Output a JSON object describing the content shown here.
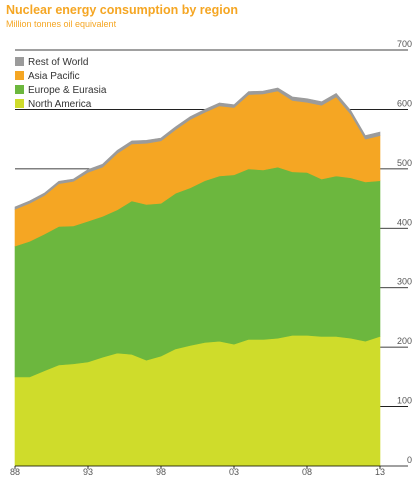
{
  "title": "Nuclear energy consumption by region",
  "subtitle": "Million tonnes oil equivalent",
  "chart_data": {
    "type": "area",
    "stacked": true,
    "x": [
      1988,
      1989,
      1990,
      1991,
      1992,
      1993,
      1994,
      1995,
      1996,
      1997,
      1998,
      1999,
      2000,
      2001,
      2002,
      2003,
      2004,
      2005,
      2006,
      2007,
      2008,
      2009,
      2010,
      2011,
      2012,
      2013
    ],
    "series": [
      {
        "name": "North America",
        "color": "#cfdc2b",
        "values": [
          150,
          150,
          160,
          170,
          172,
          175,
          183,
          190,
          188,
          178,
          185,
          197,
          203,
          208,
          210,
          205,
          213,
          213,
          215,
          220,
          220,
          218,
          218,
          215,
          210,
          218
        ]
      },
      {
        "name": "Europe & Eurasia",
        "color": "#6cb73e",
        "values": [
          220,
          228,
          230,
          233,
          232,
          237,
          237,
          241,
          258,
          262,
          257,
          262,
          265,
          272,
          278,
          285,
          287,
          285,
          288,
          275,
          274,
          265,
          270,
          270,
          268,
          262
        ]
      },
      {
        "name": "Asia Pacific",
        "color": "#f5a623",
        "values": [
          62,
          64,
          65,
          72,
          75,
          82,
          83,
          95,
          96,
          103,
          105,
          107,
          115,
          115,
          118,
          113,
          125,
          128,
          128,
          120,
          118,
          124,
          133,
          107,
          72,
          76
        ]
      },
      {
        "name": "Rest of World",
        "color": "#9b9b9b",
        "values": [
          4,
          4,
          4,
          4,
          4,
          5,
          5,
          5,
          5,
          5,
          5,
          5,
          5,
          5,
          5,
          5,
          5,
          5,
          5,
          6,
          6,
          6,
          6,
          6,
          6,
          6
        ]
      }
    ],
    "x_ticks": [
      "88",
      "93",
      "98",
      "03",
      "08",
      "13"
    ],
    "y_ticks": [
      0,
      100,
      200,
      300,
      400,
      500,
      600,
      700
    ],
    "ylim": [
      0,
      700
    ],
    "xlabel": "",
    "ylabel": "",
    "legend_position": "top-left"
  }
}
